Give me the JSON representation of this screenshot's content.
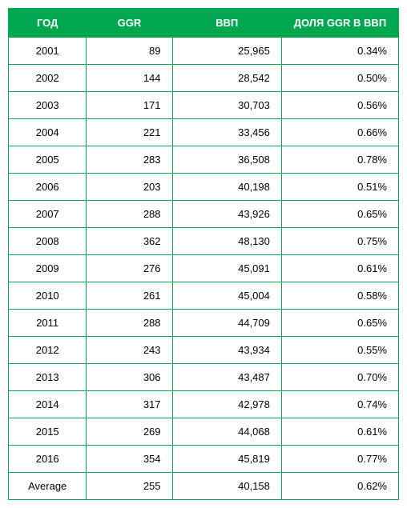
{
  "table": {
    "type": "table",
    "header_bg": "#00a751",
    "header_text_color": "#ffffff",
    "border_color": "#00a751",
    "cell_bg": "#ffffff",
    "cell_text_color": "#000000",
    "font_size": 13,
    "header_font_weight": 700,
    "columns": [
      {
        "key": "year",
        "label": "ГОД",
        "align": "center",
        "width_pct": 20
      },
      {
        "key": "ggr",
        "label": "GGR",
        "align": "right",
        "width_pct": 22
      },
      {
        "key": "gdp",
        "label": "ВВП",
        "align": "right",
        "width_pct": 28
      },
      {
        "key": "share",
        "label": "ДОЛЯ GGR В ВВП",
        "align": "right",
        "width_pct": 30
      }
    ],
    "rows": [
      {
        "year": "2001",
        "ggr": "89",
        "gdp": "25,965",
        "share": "0.34%"
      },
      {
        "year": "2002",
        "ggr": "144",
        "gdp": "28,542",
        "share": "0.50%"
      },
      {
        "year": "2003",
        "ggr": "171",
        "gdp": "30,703",
        "share": "0.56%"
      },
      {
        "year": "2004",
        "ggr": "221",
        "gdp": "33,456",
        "share": "0.66%"
      },
      {
        "year": "2005",
        "ggr": "283",
        "gdp": "36,508",
        "share": "0.78%"
      },
      {
        "year": "2006",
        "ggr": "203",
        "gdp": "40,198",
        "share": "0.51%"
      },
      {
        "year": "2007",
        "ggr": "288",
        "gdp": "43,926",
        "share": "0.65%"
      },
      {
        "year": "2008",
        "ggr": "362",
        "gdp": "48,130",
        "share": "0.75%"
      },
      {
        "year": "2009",
        "ggr": "276",
        "gdp": "45,091",
        "share": "0.61%"
      },
      {
        "year": "2010",
        "ggr": "261",
        "gdp": "45,004",
        "share": "0.58%"
      },
      {
        "year": "2011",
        "ggr": "288",
        "gdp": "44,709",
        "share": "0.65%"
      },
      {
        "year": "2012",
        "ggr": "243",
        "gdp": "43,934",
        "share": "0.55%"
      },
      {
        "year": "2013",
        "ggr": "306",
        "gdp": "43,487",
        "share": "0.70%"
      },
      {
        "year": "2014",
        "ggr": "317",
        "gdp": "42,978",
        "share": "0.74%"
      },
      {
        "year": "2015",
        "ggr": "269",
        "gdp": "44,068",
        "share": "0.61%"
      },
      {
        "year": "2016",
        "ggr": "354",
        "gdp": "45,819",
        "share": "0.77%"
      },
      {
        "year": "Average",
        "ggr": "255",
        "gdp": "40,158",
        "share": "0.62%"
      }
    ]
  }
}
